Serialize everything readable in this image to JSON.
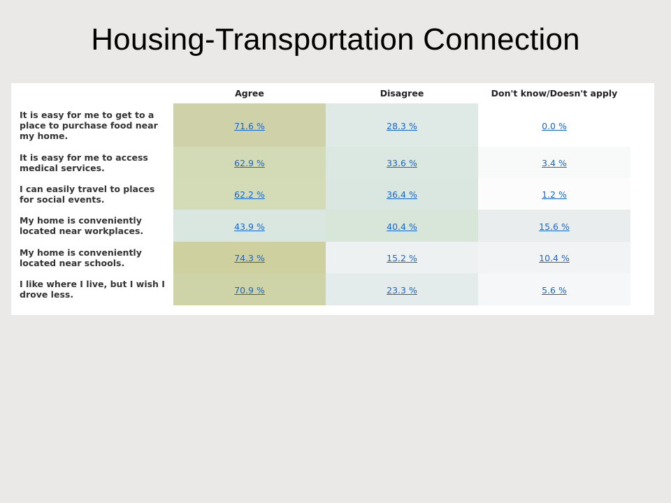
{
  "slide": {
    "title": "Housing-Transportation Connection"
  },
  "table": {
    "columns": [
      "Agree",
      "Disagree",
      "Don't know/Doesn't apply"
    ],
    "rows": [
      {
        "label": "It is easy for me to get to a place to purchase food near my home.",
        "values": [
          "71.6 %",
          "28.3 %",
          "0.0 %"
        ],
        "colors": [
          "#cfd2a8",
          "#dfe9e6",
          "#ffffff"
        ]
      },
      {
        "label": "It is easy for me to access medical services.",
        "values": [
          "62.9 %",
          "33.6 %",
          "3.4 %"
        ],
        "colors": [
          "#d2dbb6",
          "#dbe8e2",
          "#f8f9f9"
        ]
      },
      {
        "label": "I can easily travel to places for social events.",
        "values": [
          "62.2 %",
          "36.4 %",
          "1.2 %"
        ],
        "colors": [
          "#d3dcb7",
          "#d9e7e0",
          "#fcfcfc"
        ]
      },
      {
        "label": "My home is conveniently located near workplaces.",
        "values": [
          "43.9 %",
          "40.4 %",
          "15.6 %"
        ],
        "colors": [
          "#d9e7e0",
          "#d7e6d8",
          "#eaedee"
        ]
      },
      {
        "label": "My home is conveniently located near schools.",
        "values": [
          "74.3 %",
          "15.2 %",
          "10.4 %"
        ],
        "colors": [
          "#cfd09f",
          "#edf1f2",
          "#f2f3f4"
        ]
      },
      {
        "label": "I like where I live, but I wish I drove less.",
        "values": [
          "70.9 %",
          "23.3 %",
          "5.6 %"
        ],
        "colors": [
          "#cfd3a8",
          "#e3ecea",
          "#f6f7f8"
        ]
      }
    ]
  }
}
